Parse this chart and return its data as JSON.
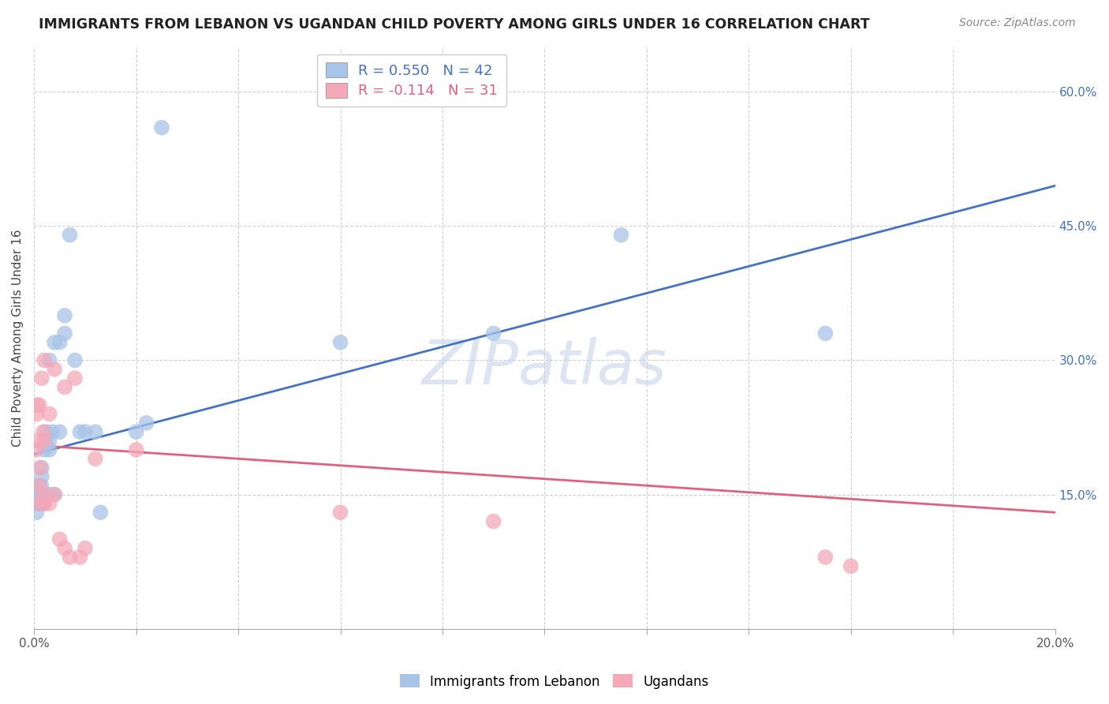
{
  "title": "IMMIGRANTS FROM LEBANON VS UGANDAN CHILD POVERTY AMONG GIRLS UNDER 16 CORRELATION CHART",
  "source": "Source: ZipAtlas.com",
  "ylabel_label": "Child Poverty Among Girls Under 16",
  "legend_label1": "Immigrants from Lebanon",
  "legend_label2": "Ugandans",
  "r1": 0.55,
  "n1": 42,
  "r2": -0.114,
  "n2": 31,
  "color1": "#a8c4e8",
  "color2": "#f4a8b8",
  "line_color1": "#4472c4",
  "line_color2": "#e06080",
  "text_color1": "#4472c4",
  "text_color2": "#e06080",
  "xmin": 0.0,
  "xmax": 0.2,
  "ymin": 0.0,
  "ymax": 0.65,
  "watermark": "ZIPatlas",
  "blue_x": [
    0.0005,
    0.0006,
    0.0008,
    0.001,
    0.001,
    0.001,
    0.0012,
    0.0013,
    0.0014,
    0.0015,
    0.0015,
    0.0018,
    0.002,
    0.002,
    0.002,
    0.0022,
    0.0023,
    0.0025,
    0.003,
    0.003,
    0.003,
    0.003,
    0.0035,
    0.004,
    0.004,
    0.005,
    0.005,
    0.006,
    0.006,
    0.007,
    0.008,
    0.009,
    0.01,
    0.012,
    0.013,
    0.02,
    0.022,
    0.025,
    0.06,
    0.09,
    0.115,
    0.155
  ],
  "blue_y": [
    0.13,
    0.14,
    0.14,
    0.14,
    0.15,
    0.16,
    0.15,
    0.14,
    0.16,
    0.17,
    0.18,
    0.15,
    0.14,
    0.15,
    0.2,
    0.21,
    0.22,
    0.15,
    0.15,
    0.2,
    0.21,
    0.3,
    0.22,
    0.15,
    0.32,
    0.22,
    0.32,
    0.33,
    0.35,
    0.44,
    0.3,
    0.22,
    0.22,
    0.22,
    0.13,
    0.22,
    0.23,
    0.56,
    0.32,
    0.33,
    0.44,
    0.33
  ],
  "pink_x": [
    0.0004,
    0.0005,
    0.0006,
    0.0008,
    0.001,
    0.001,
    0.001,
    0.0012,
    0.0015,
    0.0018,
    0.002,
    0.002,
    0.002,
    0.002,
    0.003,
    0.003,
    0.004,
    0.004,
    0.005,
    0.006,
    0.006,
    0.007,
    0.008,
    0.009,
    0.01,
    0.012,
    0.02,
    0.06,
    0.09,
    0.155,
    0.16
  ],
  "pink_y": [
    0.2,
    0.24,
    0.25,
    0.21,
    0.14,
    0.16,
    0.25,
    0.18,
    0.28,
    0.22,
    0.14,
    0.15,
    0.21,
    0.3,
    0.14,
    0.24,
    0.15,
    0.29,
    0.1,
    0.09,
    0.27,
    0.08,
    0.28,
    0.08,
    0.09,
    0.19,
    0.2,
    0.13,
    0.12,
    0.08,
    0.07
  ],
  "blue_line_x0": 0.0,
  "blue_line_x1": 0.2,
  "blue_line_y0": 0.195,
  "blue_line_y1": 0.495,
  "pink_line_x0": 0.0,
  "pink_line_x1": 0.2,
  "pink_line_y0": 0.205,
  "pink_line_y1": 0.13
}
